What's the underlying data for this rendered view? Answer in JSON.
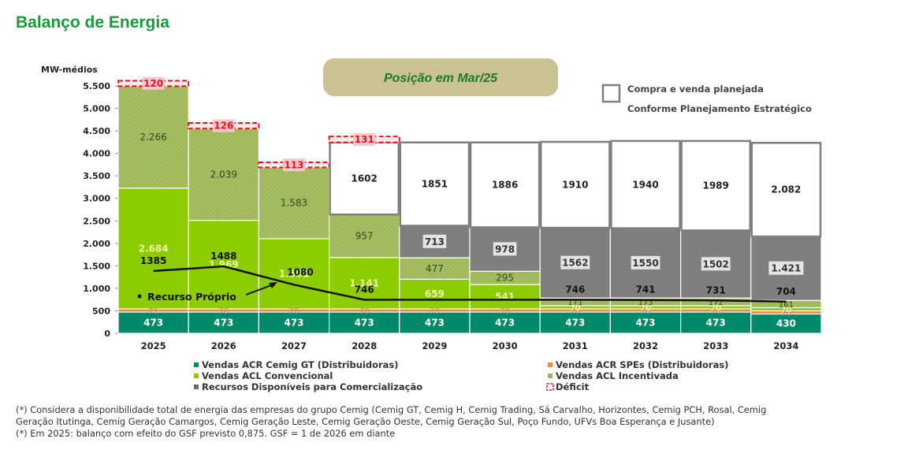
{
  "page": {
    "title": "Balanço de Energia",
    "position_label": "Posição em Mar/25",
    "planned_legend_line1": "Compra e venda planejada",
    "planned_legend_line2": "Conforme Planejamento Estratégico",
    "footnotes": [
      "(*) Considera a disponibilidade total de energia das empresas do grupo Cemig (Cemig GT, Cemig H, Cemig Trading, Sá Carvalho, Horizontes, Cemig PCH, Rosal, Cemig",
      "Geração Itutinga, Cemig Geração Camargos, Cemig Geração Leste, Cemig Geração Oeste, Cemig Geração Sul, Poço Fundo, UFVs Boa Esperança e Jusante)",
      "(*) Em 2025: balanço com efeito do GSF previsto 0,875. GSF = 1 de 2026 em diante"
    ]
  },
  "colors": {
    "title": "#1b9a3c",
    "acr_gt": "#008a6b",
    "acr_spe": "#f08a35",
    "acl_conv": "#8ccc00",
    "acl_inc": "#9fb85a",
    "recursos": "#7f7f7f",
    "planned_border": "#7f7f7f",
    "deficit": "#e8131d",
    "deficit_fill": "#f7c7cb",
    "line": "#111111",
    "banner": "#cbc293",
    "banner_text": "#1b7a2f"
  },
  "chart_data": {
    "type": "bar",
    "stacked": true,
    "ylabel": "MW-médios",
    "ylim": [
      0,
      5500
    ],
    "yticks": [
      0,
      500,
      1000,
      1500,
      2000,
      2500,
      3000,
      3500,
      4000,
      4500,
      5000,
      5500
    ],
    "ytick_labels": [
      "0",
      "500",
      "1.000",
      "1.500",
      "2.000",
      "2.500",
      "3.000",
      "3.500",
      "4.000",
      "4.500",
      "5.000",
      "5.500"
    ],
    "categories": [
      "2025",
      "2026",
      "2027",
      "2028",
      "2029",
      "2030",
      "2031",
      "2032",
      "2033",
      "2034"
    ],
    "series": [
      {
        "key": "acr_gt",
        "name": "Vendas ACR Cemig GT (Distribuidoras)",
        "values": [
          473,
          473,
          473,
          473,
          473,
          473,
          473,
          473,
          473,
          430
        ],
        "labels": [
          "473",
          "473",
          "473",
          "473",
          "473",
          "473",
          "473",
          "473",
          "473",
          "430"
        ]
      },
      {
        "key": "acr_spe",
        "name": "Vendas ACR SPEs (Distribuidoras)",
        "values": [
          71,
          70,
          70,
          70,
          70,
          70,
          70,
          70,
          70,
          70
        ],
        "labels": [
          "71",
          "70",
          "70",
          "70",
          "70",
          "70",
          "70",
          "70",
          "70",
          "70"
        ]
      },
      {
        "key": "acl_conv",
        "name": "Vendas ACL Convencional",
        "values": [
          2684,
          1969,
          1561,
          1141,
          659,
          541,
          70,
          70,
          70,
          70
        ],
        "labels": [
          "2.684",
          "1.969",
          "1.561",
          "1.141",
          "659",
          "541",
          "70",
          "70",
          "70",
          "70"
        ]
      },
      {
        "key": "acl_inc",
        "name": "Vendas ACL Incentivada",
        "values": [
          2266,
          2039,
          1583,
          957,
          477,
          295,
          171,
          173,
          172,
          161
        ],
        "labels": [
          "2.266",
          "2.039",
          "1.583",
          "957",
          "477",
          "295",
          "171",
          "173",
          "172",
          "161"
        ]
      },
      {
        "key": "recursos",
        "name": "Recursos Disponíveis para Comercialização",
        "values": [
          0,
          0,
          0,
          0,
          713,
          978,
          1562,
          1550,
          1502,
          1421
        ],
        "labels": [
          "",
          "",
          "",
          "",
          "713",
          "978",
          "1562",
          "1550",
          "1502",
          "1.421"
        ]
      }
    ],
    "deficit": {
      "name": "Déficit",
      "values": [
        120,
        126,
        113,
        131,
        0,
        0,
        0,
        0,
        0,
        0
      ],
      "labels": [
        "120",
        "126",
        "113",
        "131",
        "",
        "",
        "",
        "",
        "",
        ""
      ]
    },
    "planned": {
      "name": "Compra e venda planejada Conforme Planejamento Estratégico",
      "values": [
        0,
        0,
        0,
        1602,
        1851,
        1886,
        1910,
        1940,
        1989,
        2082
      ],
      "labels": [
        "",
        "",
        "",
        "1602",
        "1851",
        "1886",
        "1910",
        "1940",
        "1989",
        "2.082"
      ]
    },
    "recurso_proprio": {
      "name": "Recurso Próprio",
      "values": [
        1385,
        1488,
        1080,
        746,
        746,
        746,
        746,
        741,
        731,
        704
      ],
      "labels": [
        "1385",
        "1488",
        "1080",
        "746",
        "",
        "",
        "746",
        "741",
        "731",
        "704"
      ]
    },
    "legend": [
      {
        "key": "acr_gt",
        "label": "Vendas ACR Cemig GT (Distribuidoras)"
      },
      {
        "key": "acr_spe",
        "label": "Vendas ACR SPEs (Distribuidoras)"
      },
      {
        "key": "acl_conv",
        "label": "Vendas ACL Convencional"
      },
      {
        "key": "acl_inc",
        "label": "Vendas ACL Incentivada"
      },
      {
        "key": "recursos",
        "label": "Recursos Disponíveis para Comercialização"
      },
      {
        "key": "deficit",
        "label": "Déficit"
      }
    ],
    "legend_position": "bottom",
    "grid": false
  }
}
